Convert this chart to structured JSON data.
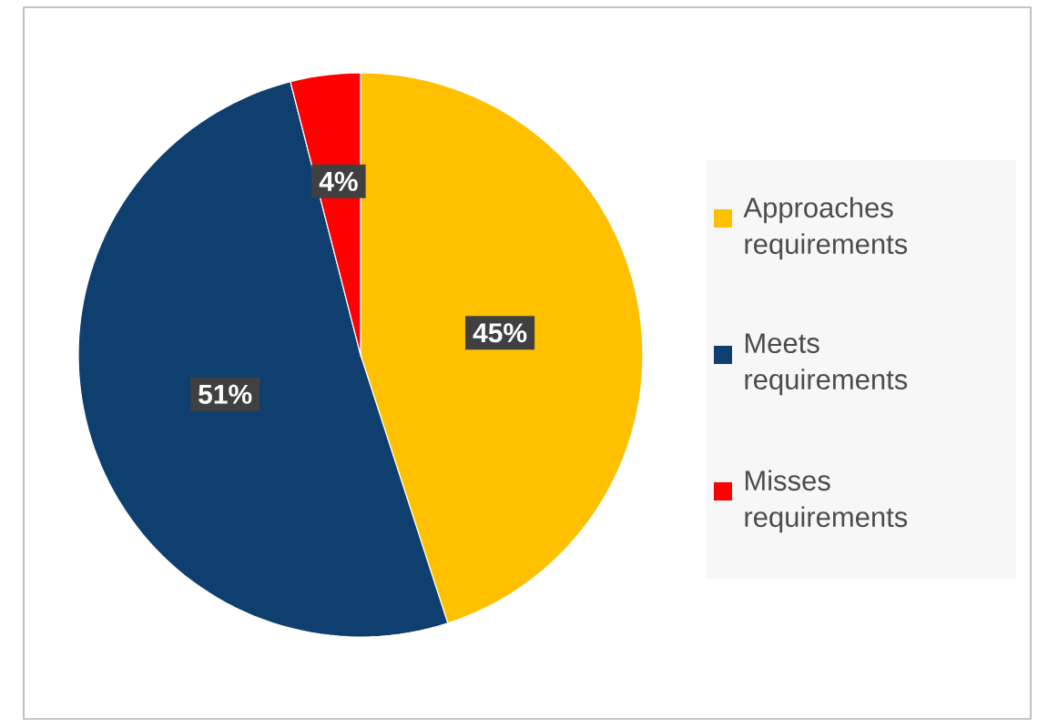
{
  "chart_data": {
    "type": "pie",
    "categories": [
      "Approaches requirements",
      "Meets requirements",
      "Misses requirements"
    ],
    "values": [
      45,
      51,
      4
    ],
    "colors": [
      "#ffc000",
      "#0f3f6e",
      "#ff0000"
    ],
    "value_labels": [
      "45%",
      "51%",
      "4%"
    ],
    "legend": "right"
  }
}
